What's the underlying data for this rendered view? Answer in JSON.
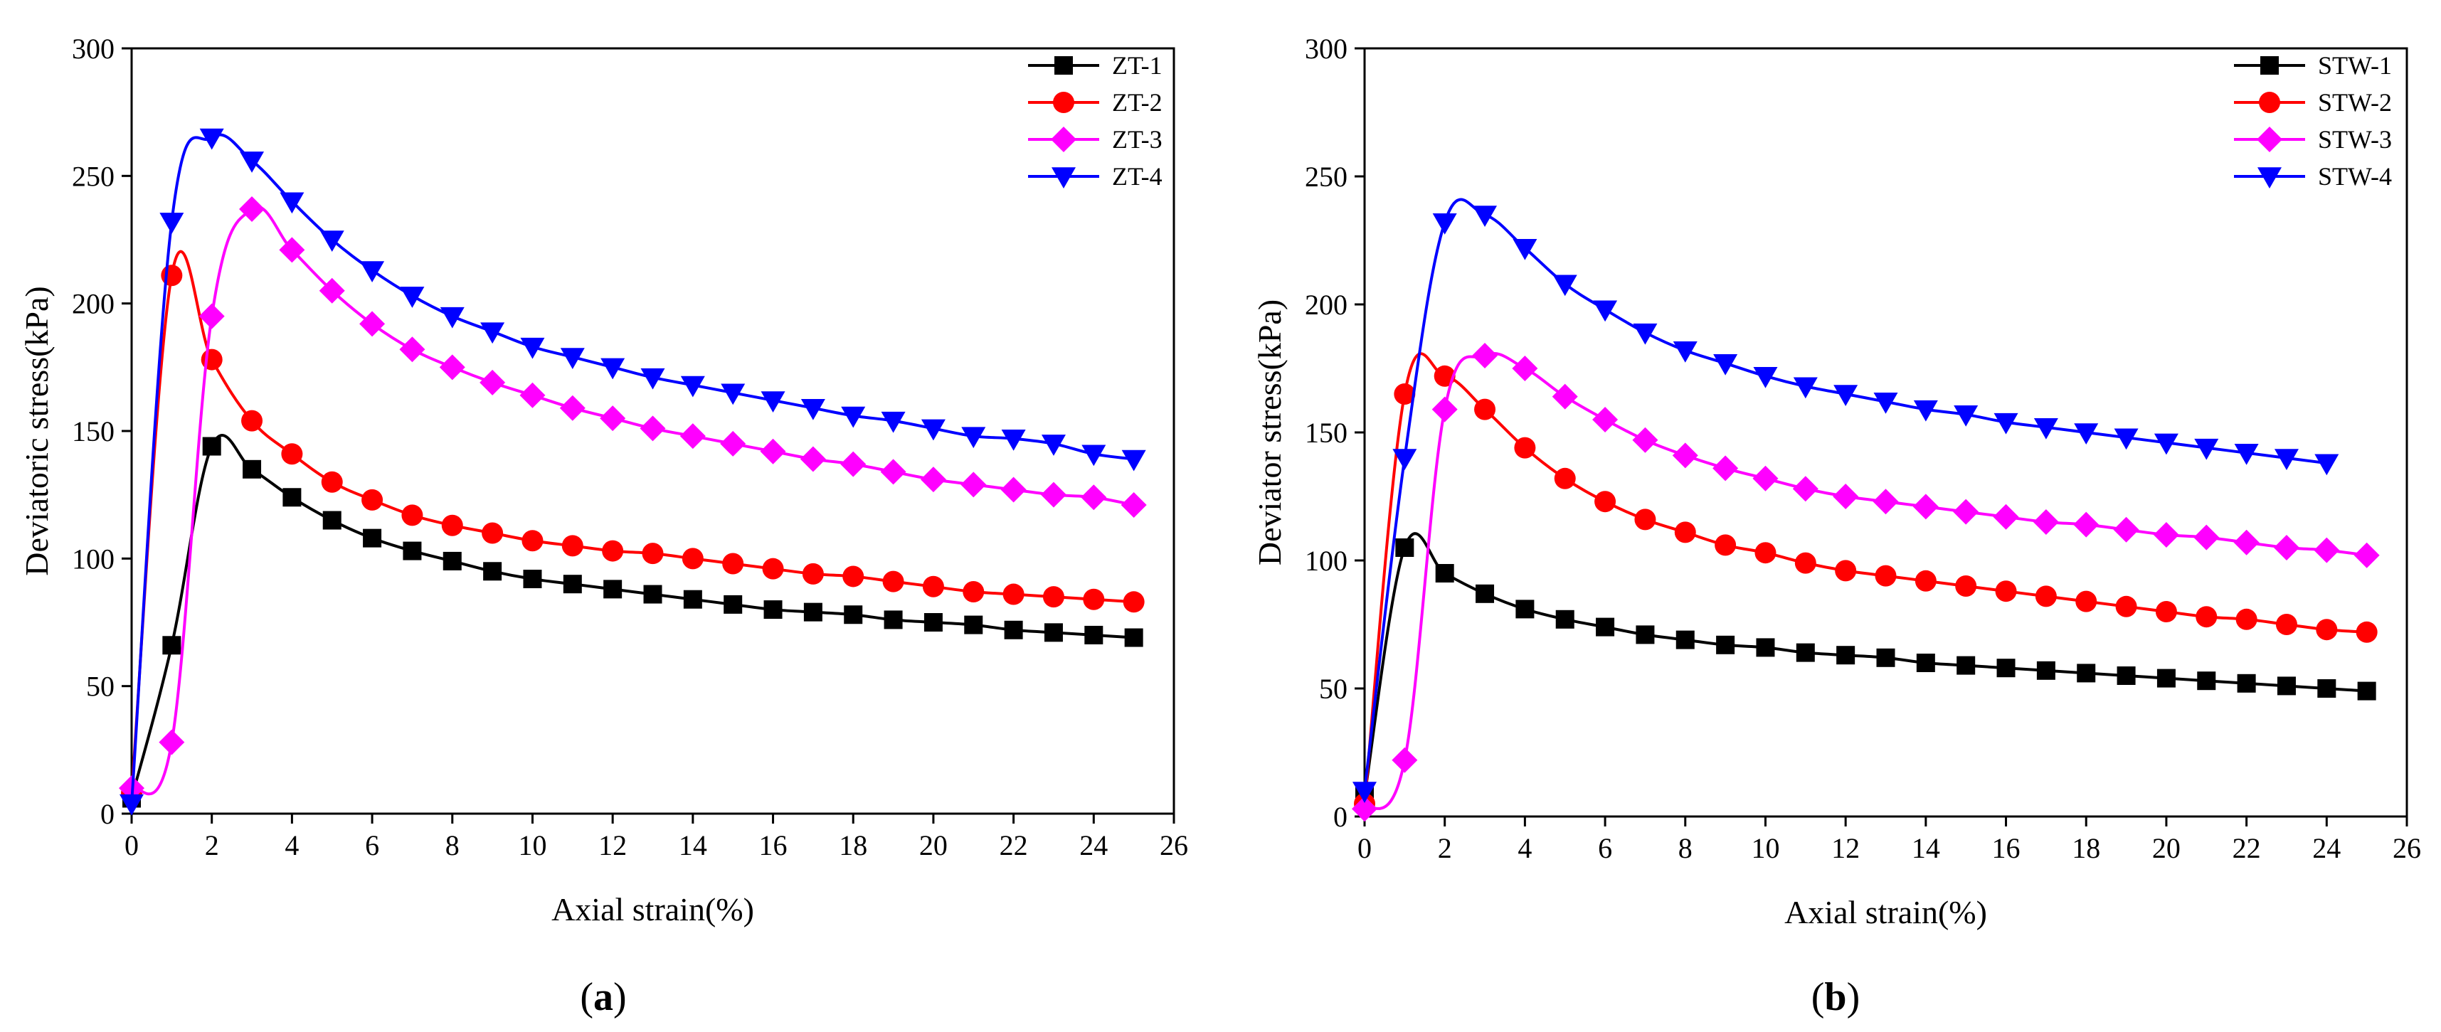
{
  "chart_data": [
    {
      "type": "line",
      "panel_label": "a",
      "xlabel": "Axial strain(%)",
      "ylabel": "Deviatoric stress(kPa)",
      "xlim": [
        0,
        26
      ],
      "ylim": [
        0,
        300
      ],
      "xticks": [
        0,
        2,
        4,
        6,
        8,
        10,
        12,
        14,
        16,
        18,
        20,
        22,
        24,
        26
      ],
      "yticks": [
        0,
        50,
        100,
        150,
        200,
        250,
        300
      ],
      "legend_position": "top-right",
      "series": [
        {
          "name": "ZT-1",
          "color": "#000000",
          "marker": "square",
          "x": [
            0,
            1,
            2,
            3,
            4,
            5,
            6,
            7,
            8,
            9,
            10,
            11,
            12,
            13,
            14,
            15,
            16,
            17,
            18,
            19,
            20,
            21,
            22,
            23,
            24,
            25
          ],
          "y": [
            6,
            66,
            144,
            135,
            124,
            115,
            108,
            103,
            99,
            95,
            92,
            90,
            88,
            86,
            84,
            82,
            80,
            79,
            78,
            76,
            75,
            74,
            72,
            71,
            70,
            69
          ]
        },
        {
          "name": "ZT-2",
          "color": "#ff0000",
          "marker": "circle",
          "x": [
            0,
            1,
            2,
            3,
            4,
            5,
            6,
            7,
            8,
            9,
            10,
            11,
            12,
            13,
            14,
            15,
            16,
            17,
            18,
            19,
            20,
            21,
            22,
            23,
            24,
            25
          ],
          "y": [
            8,
            211,
            178,
            154,
            141,
            130,
            123,
            117,
            113,
            110,
            107,
            105,
            103,
            102,
            100,
            98,
            96,
            94,
            93,
            91,
            89,
            87,
            86,
            85,
            84,
            83
          ]
        },
        {
          "name": "ZT-3",
          "color": "#ff00ff",
          "marker": "diamond",
          "x": [
            0,
            1,
            2,
            3,
            4,
            5,
            6,
            7,
            8,
            9,
            10,
            11,
            12,
            13,
            14,
            15,
            16,
            17,
            18,
            19,
            20,
            21,
            22,
            23,
            24,
            25
          ],
          "y": [
            10,
            28,
            195,
            237,
            221,
            205,
            192,
            182,
            175,
            169,
            164,
            159,
            155,
            151,
            148,
            145,
            142,
            139,
            137,
            134,
            131,
            129,
            127,
            125,
            124,
            121
          ]
        },
        {
          "name": "ZT-4",
          "color": "#0000ff",
          "marker": "triangle-down",
          "x": [
            0,
            1,
            2,
            3,
            4,
            5,
            6,
            7,
            8,
            9,
            10,
            11,
            12,
            13,
            14,
            15,
            16,
            17,
            18,
            19,
            20,
            21,
            22,
            23,
            24,
            25
          ],
          "y": [
            4,
            232,
            265,
            256,
            240,
            225,
            213,
            203,
            195,
            189,
            183,
            179,
            175,
            171,
            168,
            165,
            162,
            159,
            156,
            154,
            151,
            148,
            147,
            145,
            141,
            139
          ]
        }
      ]
    },
    {
      "type": "line",
      "panel_label": "b",
      "xlabel": "Axial strain(%)",
      "ylabel": "Deviator stress(kPa)",
      "xlim": [
        0,
        26
      ],
      "ylim": [
        0,
        300
      ],
      "xticks": [
        0,
        2,
        4,
        6,
        8,
        10,
        12,
        14,
        16,
        18,
        20,
        22,
        24,
        26
      ],
      "yticks": [
        0,
        50,
        100,
        150,
        200,
        250,
        300
      ],
      "legend_position": "top-right",
      "series": [
        {
          "name": "STW-1",
          "color": "#000000",
          "marker": "square",
          "x": [
            0,
            1,
            2,
            3,
            4,
            5,
            6,
            7,
            8,
            9,
            10,
            11,
            12,
            13,
            14,
            15,
            16,
            17,
            18,
            19,
            20,
            21,
            22,
            23,
            24,
            25
          ],
          "y": [
            8,
            105,
            95,
            87,
            81,
            77,
            74,
            71,
            69,
            67,
            66,
            64,
            63,
            62,
            60,
            59,
            58,
            57,
            56,
            55,
            54,
            53,
            52,
            51,
            50,
            49
          ]
        },
        {
          "name": "STW-2",
          "color": "#ff0000",
          "marker": "circle",
          "x": [
            0,
            1,
            2,
            3,
            4,
            5,
            6,
            7,
            8,
            9,
            10,
            11,
            12,
            13,
            14,
            15,
            16,
            17,
            18,
            19,
            20,
            21,
            22,
            23,
            24,
            25
          ],
          "y": [
            5,
            165,
            172,
            159,
            144,
            132,
            123,
            116,
            111,
            106,
            103,
            99,
            96,
            94,
            92,
            90,
            88,
            86,
            84,
            82,
            80,
            78,
            77,
            75,
            73,
            72
          ]
        },
        {
          "name": "STW-3",
          "color": "#ff00ff",
          "marker": "diamond",
          "x": [
            0,
            1,
            2,
            3,
            4,
            5,
            6,
            7,
            8,
            9,
            10,
            11,
            12,
            13,
            14,
            15,
            16,
            17,
            18,
            19,
            20,
            21,
            22,
            23,
            24,
            25
          ],
          "y": [
            3,
            22,
            159,
            180,
            175,
            164,
            155,
            147,
            141,
            136,
            132,
            128,
            125,
            123,
            121,
            119,
            117,
            115,
            114,
            112,
            110,
            109,
            107,
            105,
            104,
            102
          ]
        },
        {
          "name": "STW-4",
          "color": "#0000ff",
          "marker": "triangle-down",
          "x": [
            0,
            1,
            2,
            3,
            4,
            5,
            6,
            7,
            8,
            9,
            10,
            11,
            12,
            13,
            14,
            15,
            16,
            17,
            18,
            19,
            20,
            21,
            22,
            23,
            24
          ],
          "y": [
            10,
            140,
            232,
            235,
            222,
            208,
            198,
            189,
            182,
            177,
            172,
            168,
            165,
            162,
            159,
            157,
            154,
            152,
            150,
            148,
            146,
            144,
            142,
            140,
            138
          ]
        }
      ]
    }
  ]
}
